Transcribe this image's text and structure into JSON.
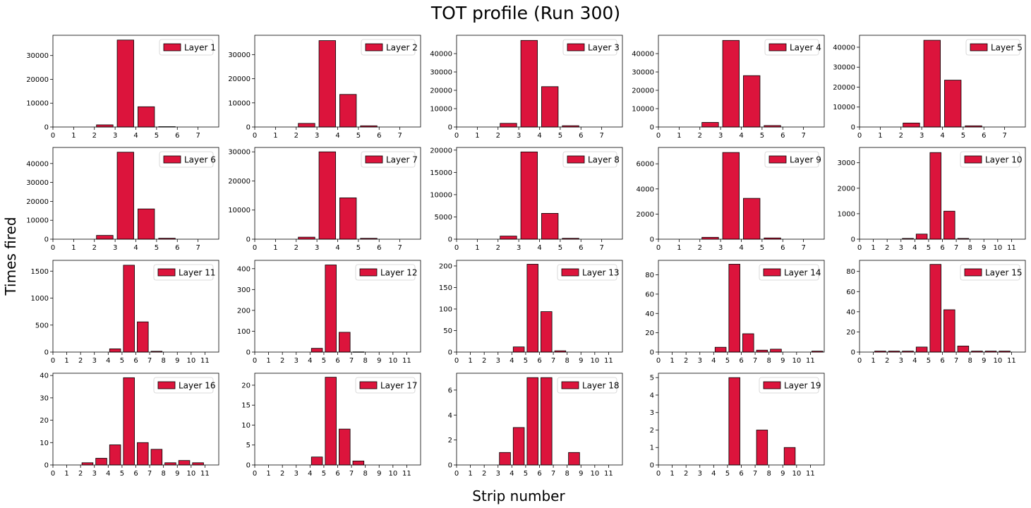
{
  "figure": {
    "title": "TOT profile (Run 300)",
    "xlabel": "Strip number",
    "ylabel": "Times fired",
    "bar_color": "#dc143c",
    "edge_color": "#000000"
  },
  "chart_data": [
    {
      "type": "bar",
      "legend": "Layer 1",
      "legend_position": "top-right",
      "x": [
        0,
        1,
        2,
        3,
        4,
        5,
        6,
        7
      ],
      "values": [
        0,
        0,
        900,
        36500,
        8500,
        150,
        0,
        0
      ],
      "ylim": [
        0,
        38500
      ],
      "yticks": [
        0,
        10000,
        20000,
        30000
      ],
      "xlim": [
        0,
        8
      ],
      "xticks": [
        0,
        1,
        2,
        3,
        4,
        5,
        6,
        7
      ]
    },
    {
      "type": "bar",
      "legend": "Layer 2",
      "legend_position": "top-right",
      "x": [
        0,
        1,
        2,
        3,
        4,
        5,
        6,
        7
      ],
      "values": [
        0,
        0,
        1500,
        35800,
        13500,
        500,
        0,
        0
      ],
      "ylim": [
        0,
        38000
      ],
      "yticks": [
        0,
        10000,
        20000,
        30000
      ],
      "xlim": [
        0,
        8
      ],
      "xticks": [
        0,
        1,
        2,
        3,
        4,
        5,
        6,
        7
      ]
    },
    {
      "type": "bar",
      "legend": "Layer 3",
      "legend_position": "top-right",
      "x": [
        0,
        1,
        2,
        3,
        4,
        5,
        6,
        7
      ],
      "values": [
        0,
        0,
        2000,
        47200,
        22000,
        700,
        0,
        0
      ],
      "ylim": [
        0,
        50000
      ],
      "yticks": [
        0,
        10000,
        20000,
        30000,
        40000
      ],
      "xlim": [
        0,
        8
      ],
      "xticks": [
        0,
        1,
        2,
        3,
        4,
        5,
        6,
        7
      ]
    },
    {
      "type": "bar",
      "legend": "Layer 4",
      "legend_position": "top-right",
      "x": [
        0,
        1,
        2,
        3,
        4,
        5,
        6,
        7
      ],
      "values": [
        0,
        0,
        2500,
        47200,
        28000,
        800,
        0,
        0
      ],
      "ylim": [
        0,
        50000
      ],
      "yticks": [
        0,
        10000,
        20000,
        30000,
        40000
      ],
      "xlim": [
        0,
        8
      ],
      "xticks": [
        0,
        1,
        2,
        3,
        4,
        5,
        6,
        7
      ]
    },
    {
      "type": "bar",
      "legend": "Layer 5",
      "legend_position": "top-right",
      "x": [
        0,
        1,
        2,
        3,
        4,
        5,
        6,
        7
      ],
      "values": [
        0,
        0,
        2000,
        43500,
        23500,
        600,
        0,
        0
      ],
      "ylim": [
        0,
        46000
      ],
      "yticks": [
        0,
        10000,
        20000,
        30000,
        40000
      ],
      "xlim": [
        0,
        8
      ],
      "xticks": [
        0,
        1,
        2,
        3,
        4,
        5,
        6,
        7
      ]
    },
    {
      "type": "bar",
      "legend": "Layer 6",
      "legend_position": "top-right",
      "x": [
        0,
        1,
        2,
        3,
        4,
        5,
        6,
        7
      ],
      "values": [
        0,
        0,
        2000,
        46000,
        16000,
        500,
        0,
        0
      ],
      "ylim": [
        0,
        48500
      ],
      "yticks": [
        0,
        10000,
        20000,
        30000,
        40000
      ],
      "xlim": [
        0,
        8
      ],
      "xticks": [
        0,
        1,
        2,
        3,
        4,
        5,
        6,
        7
      ]
    },
    {
      "type": "bar",
      "legend": "Layer 7",
      "legend_position": "top-right",
      "x": [
        0,
        1,
        2,
        3,
        4,
        5,
        6,
        7
      ],
      "values": [
        0,
        0,
        700,
        30000,
        14200,
        300,
        0,
        0
      ],
      "ylim": [
        0,
        31500
      ],
      "yticks": [
        0,
        10000,
        20000,
        30000
      ],
      "xlim": [
        0,
        8
      ],
      "xticks": [
        0,
        1,
        2,
        3,
        4,
        5,
        6,
        7
      ]
    },
    {
      "type": "bar",
      "legend": "Layer 8",
      "legend_position": "top-right",
      "x": [
        0,
        1,
        2,
        3,
        4,
        5,
        6,
        7
      ],
      "values": [
        0,
        0,
        700,
        19600,
        5800,
        200,
        0,
        0
      ],
      "ylim": [
        0,
        20600
      ],
      "yticks": [
        0,
        5000,
        10000,
        15000,
        20000
      ],
      "xlim": [
        0,
        8
      ],
      "xticks": [
        0,
        1,
        2,
        3,
        4,
        5,
        6,
        7
      ]
    },
    {
      "type": "bar",
      "legend": "Layer 9",
      "legend_position": "top-right",
      "x": [
        0,
        1,
        2,
        3,
        4,
        5,
        6,
        7
      ],
      "values": [
        0,
        0,
        150,
        6900,
        3250,
        100,
        0,
        0
      ],
      "ylim": [
        0,
        7300
      ],
      "yticks": [
        0,
        2000,
        4000,
        6000
      ],
      "xlim": [
        0,
        8
      ],
      "xticks": [
        0,
        1,
        2,
        3,
        4,
        5,
        6,
        7
      ]
    },
    {
      "type": "bar",
      "legend": "Layer 10",
      "legend_position": "top-right",
      "x": [
        0,
        1,
        2,
        3,
        4,
        5,
        6,
        7,
        8,
        9,
        10,
        11
      ],
      "values": [
        0,
        0,
        0,
        30,
        200,
        3400,
        1100,
        30,
        0,
        0,
        0,
        0
      ],
      "ylim": [
        0,
        3600
      ],
      "yticks": [
        0,
        1000,
        2000,
        3000
      ],
      "xlim": [
        0,
        12
      ],
      "xticks": [
        0,
        1,
        2,
        3,
        4,
        5,
        6,
        7,
        8,
        9,
        10,
        11
      ]
    },
    {
      "type": "bar",
      "legend": "Layer 11",
      "legend_position": "top-right",
      "x": [
        0,
        1,
        2,
        3,
        4,
        5,
        6,
        7,
        8,
        9,
        10,
        11
      ],
      "values": [
        0,
        0,
        0,
        0,
        60,
        1610,
        560,
        15,
        0,
        0,
        0,
        0
      ],
      "ylim": [
        0,
        1700
      ],
      "yticks": [
        0,
        500,
        1000,
        1500
      ],
      "xlim": [
        0,
        12
      ],
      "xticks": [
        0,
        1,
        2,
        3,
        4,
        5,
        6,
        7,
        8,
        9,
        10,
        11
      ]
    },
    {
      "type": "bar",
      "legend": "Layer 12",
      "legend_position": "top-right",
      "x": [
        0,
        1,
        2,
        3,
        4,
        5,
        6,
        7,
        8,
        9,
        10,
        11
      ],
      "values": [
        0,
        0,
        0,
        0,
        18,
        418,
        95,
        1,
        0,
        0,
        0,
        0
      ],
      "ylim": [
        0,
        440
      ],
      "yticks": [
        0,
        100,
        200,
        300,
        400
      ],
      "xlim": [
        0,
        12
      ],
      "xticks": [
        0,
        1,
        2,
        3,
        4,
        5,
        6,
        7,
        8,
        9,
        10,
        11
      ]
    },
    {
      "type": "bar",
      "legend": "Layer 13",
      "legend_position": "top-right",
      "x": [
        0,
        1,
        2,
        3,
        4,
        5,
        6,
        7,
        8,
        9,
        10,
        11
      ],
      "values": [
        0,
        0,
        0,
        0,
        12,
        204,
        94,
        3,
        0,
        0,
        0,
        0
      ],
      "ylim": [
        0,
        213
      ],
      "yticks": [
        0,
        50,
        100,
        150,
        200
      ],
      "xlim": [
        0,
        12
      ],
      "xticks": [
        0,
        1,
        2,
        3,
        4,
        5,
        6,
        7,
        8,
        9,
        10,
        11
      ]
    },
    {
      "type": "bar",
      "legend": "Layer 14",
      "legend_position": "top-right",
      "x": [
        0,
        1,
        2,
        3,
        4,
        5,
        6,
        7,
        8,
        9,
        10,
        11
      ],
      "values": [
        0,
        0,
        0,
        0,
        5,
        91,
        19,
        2,
        3,
        0,
        0,
        1
      ],
      "ylim": [
        0,
        95
      ],
      "yticks": [
        0,
        20,
        40,
        60,
        80
      ],
      "xlim": [
        0,
        12
      ],
      "xticks": [
        0,
        1,
        2,
        3,
        4,
        5,
        6,
        7,
        8,
        9,
        10,
        11
      ]
    },
    {
      "type": "bar",
      "legend": "Layer 15",
      "legend_position": "top-right",
      "x": [
        0,
        1,
        2,
        3,
        4,
        5,
        6,
        7,
        8,
        9,
        10,
        11
      ],
      "values": [
        0,
        1,
        1,
        1,
        5,
        87,
        42,
        6,
        1,
        1,
        1,
        0
      ],
      "ylim": [
        0,
        91
      ],
      "yticks": [
        0,
        20,
        40,
        60,
        80
      ],
      "xlim": [
        0,
        12
      ],
      "xticks": [
        0,
        1,
        2,
        3,
        4,
        5,
        6,
        7,
        8,
        9,
        10,
        11
      ]
    },
    {
      "type": "bar",
      "legend": "Layer 16",
      "legend_position": "top-right",
      "x": [
        0,
        1,
        2,
        3,
        4,
        5,
        6,
        7,
        8,
        9,
        10,
        11
      ],
      "values": [
        0,
        0,
        1,
        3,
        9,
        39,
        10,
        7,
        1,
        2,
        1,
        0
      ],
      "ylim": [
        0,
        41
      ],
      "yticks": [
        0,
        10,
        20,
        30,
        40
      ],
      "xlim": [
        0,
        12
      ],
      "xticks": [
        0,
        1,
        2,
        3,
        4,
        5,
        6,
        7,
        8,
        9,
        10,
        11
      ]
    },
    {
      "type": "bar",
      "legend": "Layer 17",
      "legend_position": "top-right",
      "x": [
        0,
        1,
        2,
        3,
        4,
        5,
        6,
        7,
        8,
        9,
        10,
        11
      ],
      "values": [
        0,
        0,
        0,
        0,
        2,
        22,
        9,
        1,
        0,
        0,
        0,
        0
      ],
      "ylim": [
        0,
        23
      ],
      "yticks": [
        0,
        5,
        10,
        15,
        20
      ],
      "xlim": [
        0,
        12
      ],
      "xticks": [
        0,
        1,
        2,
        3,
        4,
        5,
        6,
        7,
        8,
        9,
        10,
        11
      ]
    },
    {
      "type": "bar",
      "legend": "Layer 18",
      "legend_position": "top-right",
      "x": [
        0,
        1,
        2,
        3,
        4,
        5,
        6,
        7,
        8,
        9,
        10,
        11
      ],
      "values": [
        0,
        0,
        0,
        1,
        3,
        7,
        7,
        0,
        1,
        0,
        0,
        0
      ],
      "ylim": [
        0,
        7.35
      ],
      "yticks": [
        0,
        2,
        4,
        6
      ],
      "xlim": [
        0,
        12
      ],
      "xticks": [
        0,
        1,
        2,
        3,
        4,
        5,
        6,
        7,
        8,
        9,
        10,
        11
      ]
    },
    {
      "type": "bar",
      "legend": "Layer 19",
      "legend_position": "top-right",
      "x": [
        0,
        1,
        2,
        3,
        4,
        5,
        6,
        7,
        8,
        9,
        10,
        11
      ],
      "values": [
        0,
        0,
        0,
        0,
        0,
        5,
        0,
        2,
        0,
        1,
        0,
        0
      ],
      "ylim": [
        0,
        5.25
      ],
      "yticks": [
        0,
        1,
        2,
        3,
        4,
        5
      ],
      "xlim": [
        0,
        12
      ],
      "xticks": [
        0,
        1,
        2,
        3,
        4,
        5,
        6,
        7,
        8,
        9,
        10,
        11
      ]
    }
  ]
}
